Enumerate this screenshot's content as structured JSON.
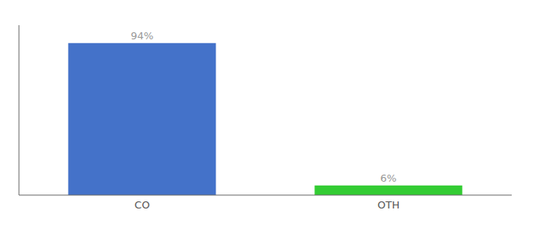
{
  "chart_data": {
    "type": "bar",
    "categories": [
      "CO",
      "OTH"
    ],
    "values": [
      94,
      6
    ],
    "value_labels": [
      "94%",
      "6%"
    ],
    "colors": [
      "#4472c9",
      "#33cc33"
    ],
    "ylim": [
      0,
      105
    ],
    "tick_labels": "x",
    "grid": false,
    "data_labels": true
  }
}
